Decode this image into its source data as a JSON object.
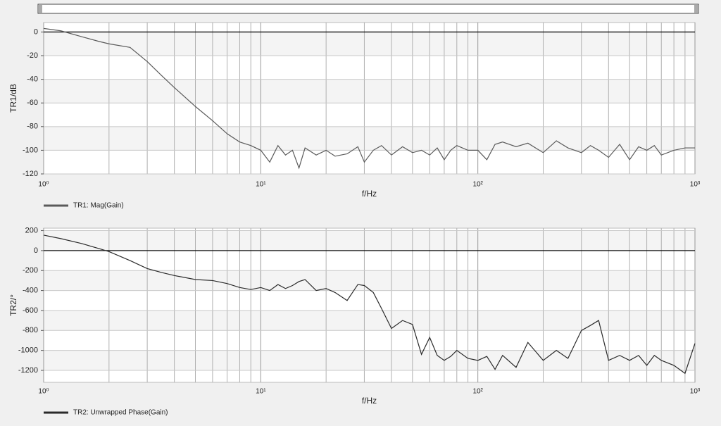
{
  "chart_data": [
    {
      "type": "line",
      "xscale": "log",
      "xlabel": "f/Hz",
      "ylabel": "TR1/dB",
      "grid": true,
      "xlim": [
        1,
        1000
      ],
      "xticks": [
        {
          "value": 1,
          "label": "10⁰"
        },
        {
          "value": 10,
          "label": "10¹"
        },
        {
          "value": 100,
          "label": "10²"
        },
        {
          "value": 1000,
          "label": "10³"
        }
      ],
      "minor_xticks": [
        2,
        3,
        4,
        5,
        6,
        7,
        8,
        9,
        20,
        30,
        40,
        50,
        60,
        70,
        80,
        90,
        200,
        300,
        400,
        500,
        600,
        700,
        800,
        900
      ],
      "ylim": [
        -120,
        8
      ],
      "yticks": [
        0,
        -20,
        -40,
        -60,
        -80,
        -100,
        -120
      ],
      "x": [
        1,
        1.2,
        1.5,
        1.8,
        2,
        2.5,
        3,
        3.5,
        4,
        5,
        6,
        7,
        8,
        9,
        10,
        11,
        12,
        13,
        14,
        15,
        16,
        18,
        20,
        22,
        25,
        28,
        30,
        33,
        36,
        40,
        45,
        50,
        55,
        60,
        65,
        70,
        75,
        80,
        90,
        100,
        110,
        120,
        130,
        150,
        170,
        200,
        230,
        260,
        300,
        330,
        360,
        400,
        450,
        500,
        550,
        600,
        650,
        700,
        800,
        900,
        1000
      ],
      "series": [
        {
          "name": "TR1: Mag(Gain)",
          "color": "#5a5a5a",
          "values": [
            3,
            1,
            -4,
            -8,
            -10,
            -13,
            -25,
            -37,
            -47,
            -63,
            -75,
            -86,
            -93,
            -96,
            -100,
            -110,
            -96,
            -104,
            -100,
            -115,
            -98,
            -104,
            -100,
            -105,
            -103,
            -97,
            -110,
            -100,
            -96,
            -104,
            -97,
            -102,
            -100,
            -104,
            -98,
            -108,
            -100,
            -96,
            -100,
            -100,
            -108,
            -95,
            -93,
            -97,
            -94,
            -102,
            -92,
            -98,
            -102,
            -96,
            -100,
            -106,
            -95,
            -108,
            -97,
            -100,
            -96,
            -104,
            -100,
            -98,
            -98
          ]
        }
      ]
    },
    {
      "type": "line",
      "xscale": "log",
      "xlabel": "f/Hz",
      "ylabel": "TR2/°",
      "grid": true,
      "xlim": [
        1,
        1000
      ],
      "xticks": [
        {
          "value": 1,
          "label": "10⁰"
        },
        {
          "value": 10,
          "label": "10¹"
        },
        {
          "value": 100,
          "label": "10²"
        },
        {
          "value": 1000,
          "label": "10³"
        }
      ],
      "minor_xticks": [
        2,
        3,
        4,
        5,
        6,
        7,
        8,
        9,
        20,
        30,
        40,
        50,
        60,
        70,
        80,
        90,
        200,
        300,
        400,
        500,
        600,
        700,
        800,
        900
      ],
      "ylim": [
        -1320,
        225
      ],
      "yticks": [
        200,
        0,
        -200,
        -400,
        -600,
        -800,
        -1000,
        -1200
      ],
      "x": [
        1,
        1.2,
        1.5,
        1.8,
        2,
        2.5,
        3,
        3.5,
        4,
        5,
        6,
        7,
        8,
        9,
        10,
        11,
        12,
        13,
        14,
        15,
        16,
        18,
        20,
        22,
        25,
        28,
        30,
        33,
        36,
        40,
        45,
        50,
        55,
        60,
        65,
        70,
        75,
        80,
        90,
        100,
        110,
        120,
        130,
        150,
        170,
        200,
        230,
        260,
        300,
        330,
        360,
        400,
        450,
        500,
        550,
        600,
        650,
        700,
        800,
        900,
        1000
      ],
      "series": [
        {
          "name": "TR2: Unwrapped Phase(Gain)",
          "color": "#2a2a2a",
          "values": [
            155,
            120,
            70,
            20,
            -10,
            -100,
            -180,
            -220,
            -250,
            -290,
            -300,
            -330,
            -370,
            -390,
            -370,
            -400,
            -340,
            -380,
            -350,
            -310,
            -290,
            -400,
            -380,
            -420,
            -500,
            -340,
            -350,
            -420,
            -580,
            -780,
            -700,
            -740,
            -1040,
            -870,
            -1050,
            -1100,
            -1060,
            -1000,
            -1080,
            -1100,
            -1060,
            -1190,
            -1050,
            -1170,
            -920,
            -1100,
            -1000,
            -1080,
            -800,
            -750,
            -700,
            -1100,
            -1050,
            -1100,
            -1050,
            -1150,
            -1050,
            -1100,
            -1150,
            -1230,
            -930
          ]
        }
      ]
    }
  ]
}
